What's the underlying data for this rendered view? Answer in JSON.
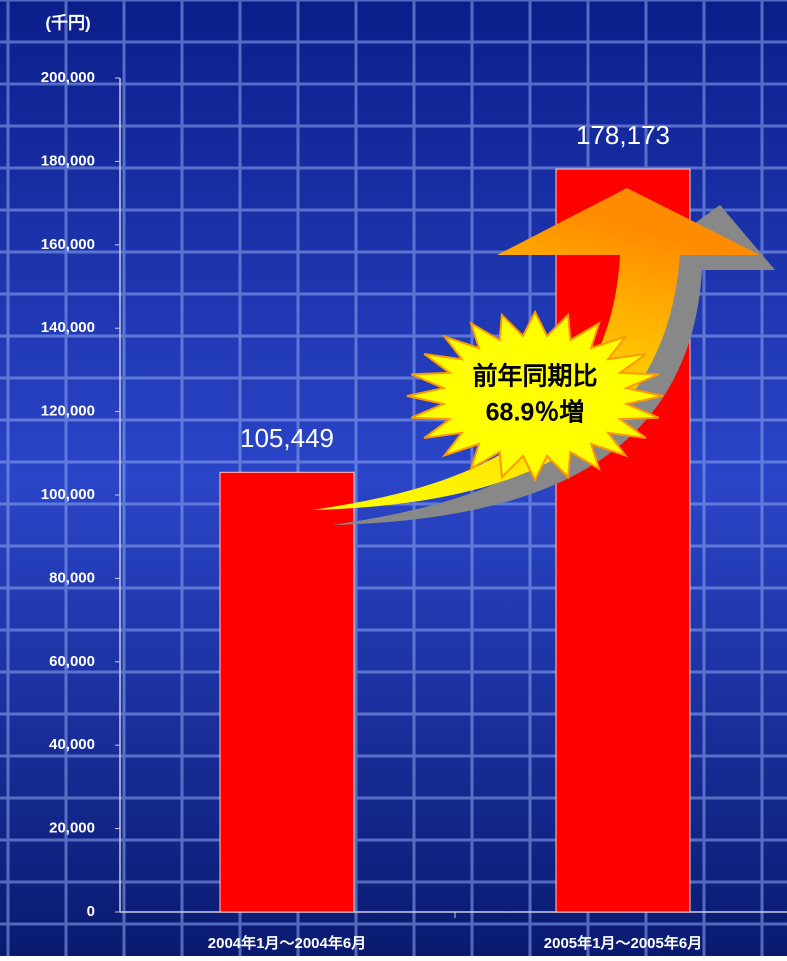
{
  "chart_data": {
    "type": "bar",
    "unit_label": "(千円)",
    "categories": [
      "2004年1月～2004年6月",
      "2005年1月～2005年6月"
    ],
    "values": [
      105449,
      178173
    ],
    "value_labels": [
      "105,449",
      "178,173"
    ],
    "color": "#ff0000",
    "ylim": [
      0,
      200000
    ],
    "yticks": [
      0,
      {
        "value": 20000,
        "label": "20,000"
      },
      {
        "value": 40000,
        "label": "40,000"
      },
      {
        "value": 60000,
        "label": "60,000"
      },
      {
        "value": 80000,
        "label": "80,000"
      },
      {
        "value": 100000,
        "label": "100,000"
      },
      {
        "value": 120000,
        "label": "120,000"
      },
      {
        "value": 140000,
        "label": "140,000"
      },
      {
        "value": 160000,
        "label": "160,000"
      },
      {
        "value": 180000,
        "label": "180,000"
      },
      {
        "value": 200000,
        "label": "200,000"
      }
    ],
    "annotation": [
      "前年同期比",
      "68.9％増"
    ]
  }
}
